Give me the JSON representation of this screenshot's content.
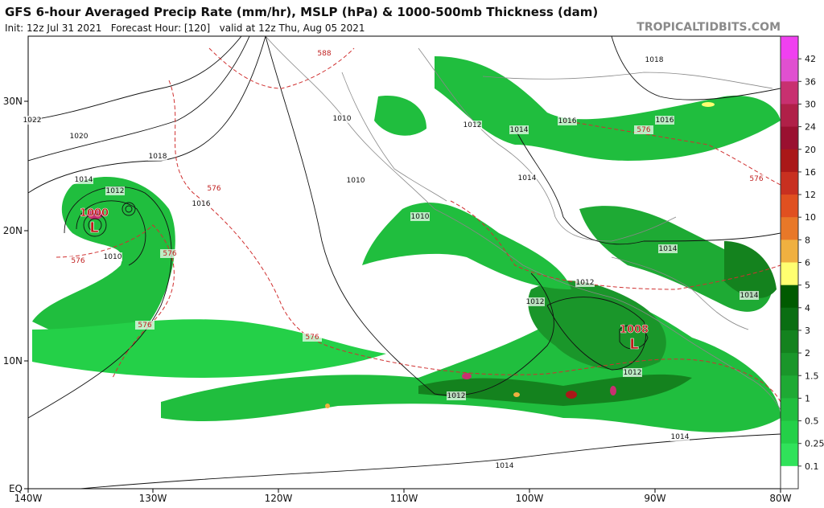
{
  "header": {
    "title": "GFS 6-hour Averaged Precip Rate (mm/hr), MSLP (hPa) & 1000-500mb Thickness (dam)",
    "subtitle": "Init: 12z Jul 31 2021   Forecast Hour: [120]   valid at 12z Thu, Aug 05 2021",
    "site": "TROPICALTIDBITS.COM"
  },
  "axes": {
    "longitude": [
      "140W",
      "130W",
      "120W",
      "110W",
      "100W",
      "90W",
      "80W"
    ],
    "latitude": [
      "30N",
      "20N",
      "10N",
      "EQ"
    ]
  },
  "colorbar": {
    "labels": [
      "42",
      "36",
      "30",
      "24",
      "20",
      "16",
      "12",
      "10",
      "8",
      "6",
      "5",
      "4",
      "3",
      "2",
      "1.5",
      "1",
      "0.5",
      "0.25",
      "0.1"
    ],
    "colors": [
      "#f040f0",
      "#e050d0",
      "#c83070",
      "#b02048",
      "#9a1030",
      "#aa1818",
      "#c83020",
      "#e05020",
      "#e87828",
      "#f0b040",
      "#ffff70",
      "#005a00",
      "#0a6e12",
      "#14821e",
      "#1a962a",
      "#1eaa34",
      "#20be3e",
      "#24d048",
      "#30e25a",
      "#ffffff"
    ]
  },
  "contour_labels": [
    "1022",
    "1020",
    "1018",
    "1016",
    "1014",
    "1012",
    "1010",
    "1010",
    "1010",
    "1010",
    "1012",
    "1014",
    "1014",
    "1014",
    "1016",
    "1016",
    "1018",
    "1014",
    "1012",
    "1012",
    "1012",
    "1012",
    "1014",
    "1014",
    "576",
    "576",
    "576",
    "576",
    "576",
    "588",
    "576",
    "576"
  ],
  "lows": [
    {
      "pressure": "1000",
      "symbol": "L"
    },
    {
      "pressure": "1008",
      "symbol": "L"
    }
  ]
}
